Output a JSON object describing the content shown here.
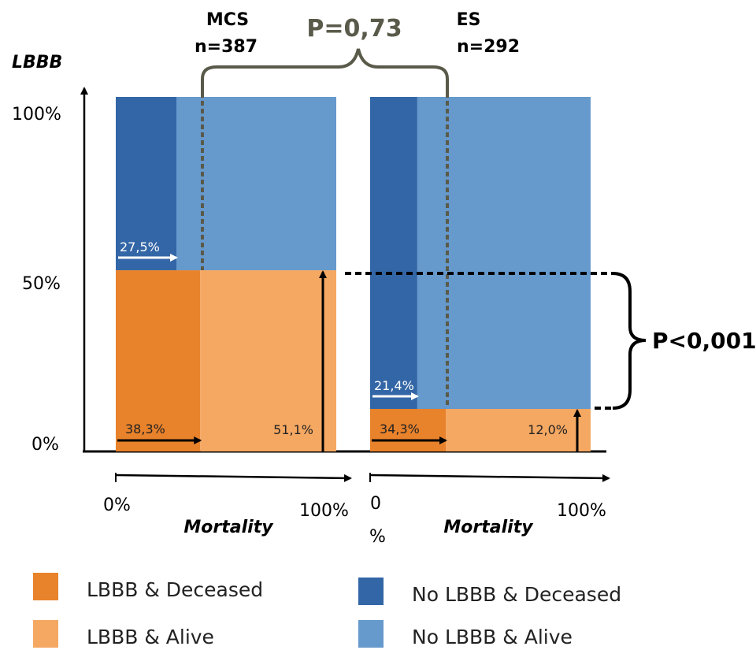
{
  "chart_data": {
    "type": "mosaic",
    "y_axis_title": "LBBB",
    "y_ticks": [
      "100%",
      "50%",
      "0%"
    ],
    "x_axis_title": "Mortality",
    "colors": {
      "lbbb_deceased": "#E8822B",
      "lbbb_alive": "#F5A862",
      "no_lbbb_deceased": "#3366A6",
      "no_lbbb_alive": "#6699CC",
      "p_value_between_groups": "#5A5A4A"
    },
    "groups": [
      {
        "name": "MCS",
        "n_label": "n=387",
        "lbbb_fraction": 0.511,
        "mortality_lbbb": 0.383,
        "mortality_no_lbbb": 0.275,
        "label_mortality_no_lbbb": "27,5%",
        "label_mortality_lbbb": "38,3%",
        "label_lbbb_fraction": "51,1%",
        "x_start_label": "0%",
        "x_end_label": "100%"
      },
      {
        "name": "ES",
        "n_label": "n=292",
        "lbbb_fraction": 0.12,
        "mortality_lbbb": 0.343,
        "mortality_no_lbbb": 0.214,
        "label_mortality_no_lbbb": "21,4%",
        "label_mortality_lbbb": "34,3%",
        "label_lbbb_fraction": "12,0%",
        "x_start_label": "0\n%",
        "x_end_label": "100%"
      }
    ],
    "comparisons": [
      {
        "label": "P=0,73",
        "between": "mortality"
      },
      {
        "label": "P<0,001",
        "between": "LBBB prevalence"
      }
    ],
    "legend": [
      {
        "key": "lbbb_deceased",
        "label": "LBBB & Deceased"
      },
      {
        "key": "no_lbbb_deceased",
        "label": "No LBBB & Deceased"
      },
      {
        "key": "lbbb_alive",
        "label": "LBBB & Alive"
      },
      {
        "key": "no_lbbb_alive",
        "label": "No LBBB & Alive"
      }
    ]
  }
}
